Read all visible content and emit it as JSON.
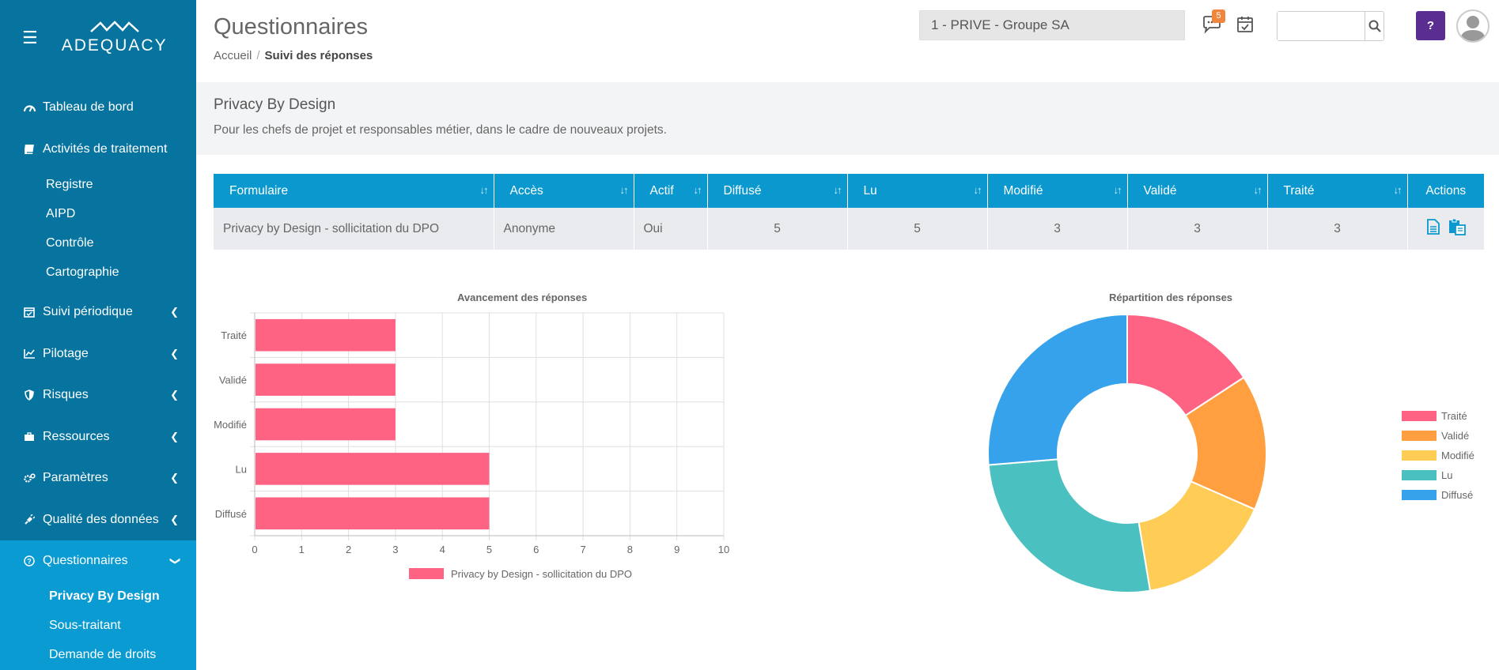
{
  "sidebar": {
    "brand": "ADEQUACY",
    "items": [
      {
        "label": "Tableau de bord"
      },
      {
        "label": "Activités de traitement",
        "children": [
          "Registre",
          "AIPD",
          "Contrôle",
          "Cartographie"
        ]
      },
      {
        "label": "Suivi périodique"
      },
      {
        "label": "Pilotage"
      },
      {
        "label": "Risques"
      },
      {
        "label": "Ressources"
      },
      {
        "label": "Paramètres"
      },
      {
        "label": "Qualité des données"
      },
      {
        "label": "Questionnaires",
        "children": [
          "Privacy By Design",
          "Sous-traitant",
          "Demande de droits"
        ]
      }
    ]
  },
  "header": {
    "title": "Questionnaires",
    "breadcrumb": [
      "Accueil",
      "Suivi des réponses"
    ],
    "org_select": "1 - PRIVE - Groupe SA",
    "notifications_count": "5",
    "help_label": "?"
  },
  "info": {
    "title": "Privacy By Design",
    "description": "Pour les chefs de projet et responsables métier, dans le cadre de nouveaux projets."
  },
  "table": {
    "columns": [
      "Formulaire",
      "Accès",
      "Actif",
      "Diffusé",
      "Lu",
      "Modifié",
      "Validé",
      "Traité",
      "Actions"
    ],
    "rows": [
      [
        "Privacy by Design - sollicitation du DPO",
        "Anonyme",
        "Oui",
        "5",
        "5",
        "3",
        "3",
        "3"
      ]
    ]
  },
  "colors": {
    "sidebar": "#07749f",
    "active": "#0a9bd3",
    "header": "#0b98cf",
    "bar": "#ff6384",
    "pie": [
      "#ff6384",
      "#ff9f40",
      "#ffcd56",
      "#4bc0c0",
      "#36a2eb"
    ]
  },
  "chart_data": [
    {
      "type": "bar",
      "orientation": "horizontal",
      "title": "Avancement des réponses",
      "categories": [
        "Traité",
        "Validé",
        "Modifié",
        "Lu",
        "Diffusé"
      ],
      "series": [
        {
          "name": "Privacy by Design - sollicitation du DPO",
          "values": [
            3,
            3,
            3,
            5,
            5
          ]
        }
      ],
      "xlim": [
        0,
        10
      ],
      "xticks": [
        0,
        1,
        2,
        3,
        4,
        5,
        6,
        7,
        8,
        9,
        10
      ],
      "grid": true,
      "legend": "bottom"
    },
    {
      "type": "pie",
      "variant": "doughnut",
      "title": "Répartition des réponses",
      "labels": [
        "Traité",
        "Validé",
        "Modifié",
        "Lu",
        "Diffusé"
      ],
      "values": [
        3,
        3,
        3,
        5,
        5
      ],
      "legend": "right"
    }
  ]
}
